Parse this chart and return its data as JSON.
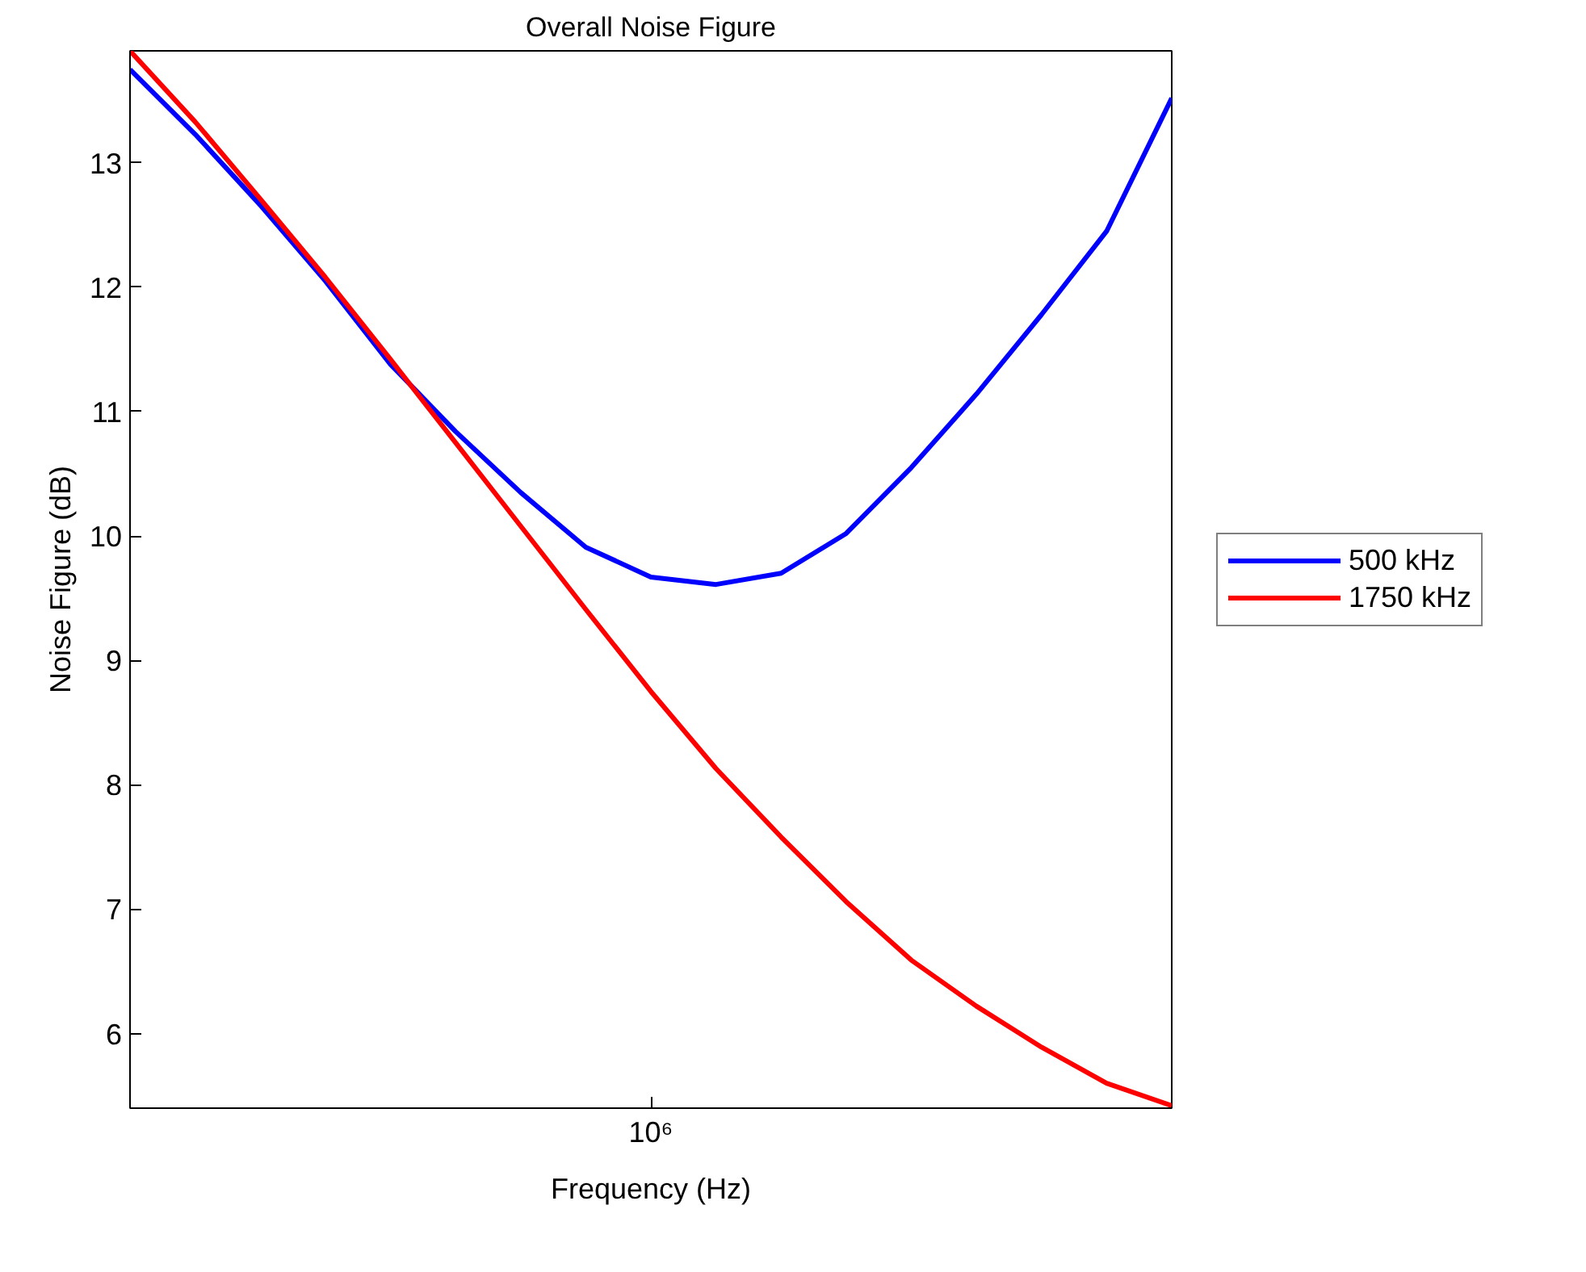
{
  "chart_data": {
    "type": "line",
    "title": "Overall Noise Figure",
    "xlabel": "Frequency (Hz)",
    "ylabel": "Noise Figure (dB)",
    "annotations": [
      "10⁶"
    ],
    "categories": [
      null,
      null,
      null,
      null,
      null,
      null,
      null,
      null,
      null,
      null,
      null,
      null,
      null,
      null,
      null,
      null,
      null
    ],
    "ylim": [
      5.4,
      13.9
    ],
    "yticks": [
      6,
      7,
      8,
      9,
      10,
      11,
      12,
      13
    ],
    "grid": false,
    "legend": "right",
    "line_style": "solid",
    "series": [
      {
        "name": "500 kHz",
        "color": "#0000ff",
        "values": [
          13.75,
          13.23,
          12.66,
          12.05,
          11.38,
          10.84,
          10.35,
          9.91,
          9.67,
          9.61,
          9.7,
          10.02,
          10.55,
          11.14,
          11.78,
          12.45,
          13.52
        ]
      },
      {
        "name": "1750 kHz",
        "color": "#ff0000",
        "values": [
          13.9,
          13.33,
          12.71,
          12.08,
          11.42,
          10.75,
          10.08,
          9.41,
          8.75,
          8.13,
          7.58,
          7.06,
          6.59,
          6.22,
          5.89,
          5.6,
          5.42
        ]
      }
    ]
  }
}
